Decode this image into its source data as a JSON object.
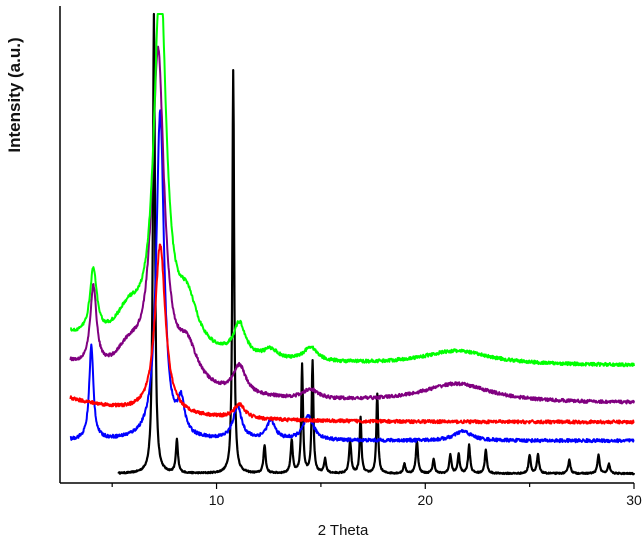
{
  "chart_data": {
    "type": "line",
    "title": "",
    "xlabel": "2 Theta",
    "ylabel": "Intensity (a.u.)",
    "xlim": [
      2.5,
      30
    ],
    "ylim": [
      0,
      100
    ],
    "x_ticks": [
      10,
      20,
      30
    ],
    "x_tick_labels": [
      "10",
      "20",
      "30"
    ],
    "y_ticks_shown": false,
    "grid": false,
    "legend": "none",
    "series": [
      {
        "color": "#000000",
        "x_range": [
          5.3,
          30
        ],
        "baseline": 2.0,
        "peaks": [
          [
            7.0,
            98,
            0.06
          ],
          [
            10.8,
            86,
            0.05
          ],
          [
            8.1,
            7,
            0.06
          ],
          [
            12.3,
            6,
            0.06
          ],
          [
            13.6,
            7,
            0.06
          ],
          [
            14.1,
            23,
            0.05
          ],
          [
            14.6,
            24,
            0.05
          ],
          [
            15.2,
            3,
            0.06
          ],
          [
            16.4,
            7,
            0.06
          ],
          [
            16.9,
            12,
            0.05
          ],
          [
            17.7,
            17,
            0.05
          ],
          [
            19.0,
            2,
            0.06
          ],
          [
            19.6,
            7,
            0.06
          ],
          [
            20.4,
            3,
            0.06
          ],
          [
            21.2,
            4,
            0.06
          ],
          [
            21.6,
            4,
            0.06
          ],
          [
            22.1,
            6,
            0.06
          ],
          [
            22.9,
            5,
            0.06
          ],
          [
            25.0,
            4,
            0.06
          ],
          [
            25.4,
            4,
            0.06
          ],
          [
            26.9,
            3,
            0.06
          ],
          [
            28.3,
            4,
            0.06
          ],
          [
            28.8,
            2,
            0.06
          ]
        ]
      },
      {
        "color": "#0000ff",
        "x_range": [
          3.0,
          30
        ],
        "baseline": 9.0,
        "peaks": [
          [
            4.0,
            20,
            0.12
          ],
          [
            7.3,
            70,
            0.22
          ],
          [
            8.3,
            7,
            0.2
          ],
          [
            11.0,
            7,
            0.25
          ],
          [
            12.6,
            4,
            0.25
          ],
          [
            14.4,
            5,
            0.3
          ],
          [
            21.8,
            2,
            0.5
          ]
        ]
      },
      {
        "color": "#ff0000",
        "x_range": [
          3.0,
          30
        ],
        "baseline": 13.0,
        "start_level": 18.0,
        "peaks": [
          [
            7.3,
            36,
            0.3
          ],
          [
            11.1,
            3,
            0.3
          ]
        ]
      },
      {
        "color": "#800080",
        "x_range": [
          3.0,
          30
        ],
        "baseline": 17.0,
        "start_level": 25.0,
        "peaks": [
          [
            4.1,
            17,
            0.18
          ],
          [
            5.8,
            6,
            0.8
          ],
          [
            7.2,
            70,
            0.35
          ],
          [
            8.6,
            8,
            0.6
          ],
          [
            11.1,
            6,
            0.35
          ],
          [
            14.5,
            2,
            0.4
          ],
          [
            21.5,
            4,
            2.0
          ]
        ]
      },
      {
        "color": "#00ff00",
        "x_range": [
          3.0,
          30
        ],
        "baseline": 25.0,
        "start_level": 31.0,
        "peaks": [
          [
            4.1,
            14,
            0.2
          ],
          [
            5.8,
            7,
            0.8
          ],
          [
            7.3,
            79,
            0.35
          ],
          [
            8.6,
            10,
            0.6
          ],
          [
            11.1,
            7,
            0.35
          ],
          [
            12.6,
            2,
            0.4
          ],
          [
            14.5,
            3,
            0.4
          ],
          [
            21.5,
            3,
            2.0
          ]
        ]
      }
    ]
  }
}
